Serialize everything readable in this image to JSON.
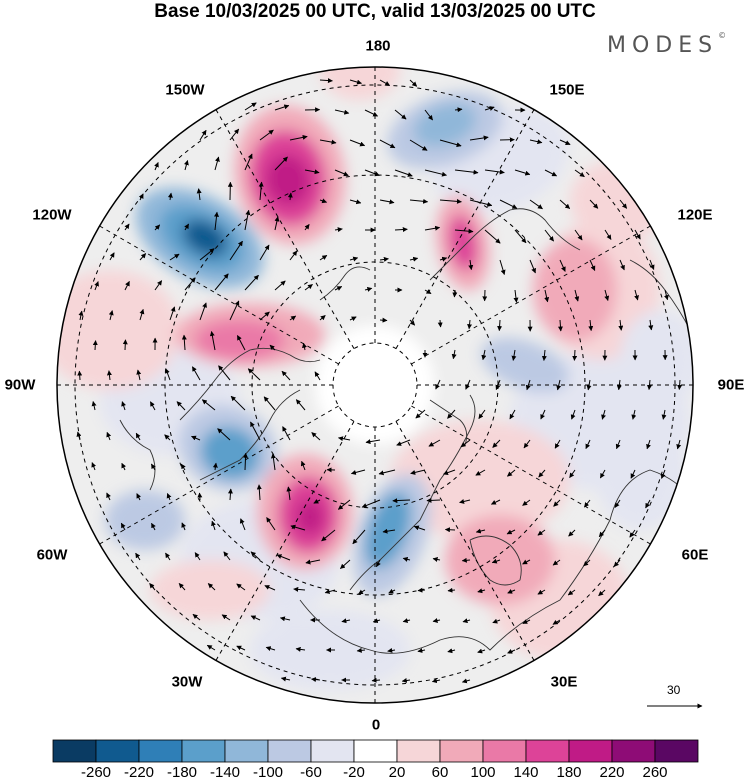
{
  "title": "Base 10/03/2025 00 UTC, valid 13/03/2025 00 UTC",
  "brand": "MODES",
  "brand_mark": "©",
  "longitude_labels": {
    "top": "180",
    "bottom": "0",
    "left": "90W",
    "right": "90E",
    "upper_left_1": "150W",
    "upper_left_2": "120W",
    "lower_left_1": "60W",
    "lower_left_2": "30W",
    "upper_right_1": "150E",
    "upper_right_2": "120E",
    "lower_right_1": "60E",
    "lower_right_2": "30E"
  },
  "reference_vector": "30",
  "colorbar": {
    "ticks": [
      "-260",
      "-220",
      "-180",
      "-140",
      "-100",
      "-60",
      "-20",
      "20",
      "60",
      "100",
      "140",
      "180",
      "220",
      "260"
    ],
    "colors": [
      "#0a3b63",
      "#105a8f",
      "#2f7fb7",
      "#5b9fcb",
      "#90b7d9",
      "#bcc9e3",
      "#e3e5f1",
      "#ffffff",
      "#f6d6d8",
      "#f1aab9",
      "#ea79a7",
      "#dd4398",
      "#c01b86",
      "#8e0c76",
      "#5a0763"
    ]
  },
  "chart_data": {
    "type": "map",
    "projection": "north polar stereographic",
    "field": "anomaly shading with wind vectors",
    "legend_placement": "bottom",
    "shading_levels": [
      -260,
      -220,
      -180,
      -140,
      -100,
      -60,
      -20,
      20,
      60,
      100,
      140,
      180,
      220,
      260
    ],
    "meridian_labels": [
      "180",
      "150E",
      "120E",
      "90E",
      "60E",
      "30E",
      "0",
      "30W",
      "60W",
      "90W",
      "120W",
      "150W"
    ],
    "reference_vector": 30,
    "grid": true
  }
}
